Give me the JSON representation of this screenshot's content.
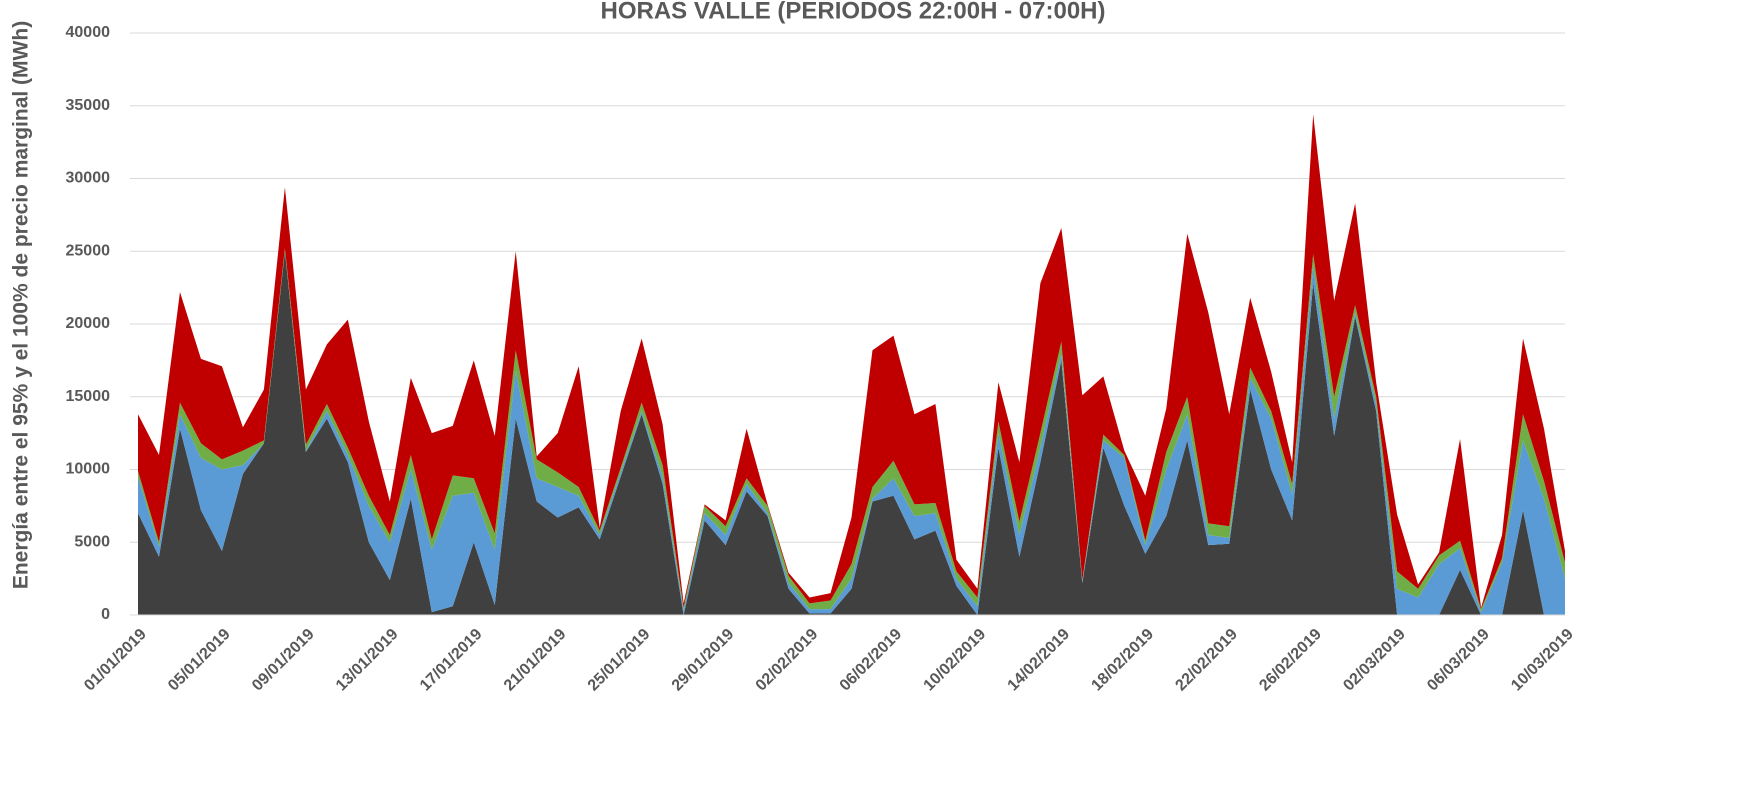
{
  "chart_data": {
    "type": "stacked-area",
    "title": "HORAS VALLE (PERIODOS 22:00H - 07:00H)",
    "y_label": "Energía entre el 95% y el 100% de precio marginal (MWh)",
    "categories": [
      "01/01/2019",
      null,
      null,
      null,
      "05/01/2019",
      null,
      null,
      null,
      "09/01/2019",
      null,
      null,
      null,
      "13/01/2019",
      null,
      null,
      null,
      "17/01/2019",
      null,
      null,
      null,
      "21/01/2019",
      null,
      null,
      null,
      "25/01/2019",
      null,
      null,
      null,
      "29/01/2019",
      null,
      null,
      null,
      "02/02/2019",
      null,
      null,
      null,
      "06/02/2019",
      null,
      null,
      null,
      "10/02/2019",
      null,
      null,
      null,
      "14/02/2019",
      null,
      null,
      null,
      "18/02/2019",
      null,
      null,
      null,
      "22/02/2019",
      null,
      null,
      null,
      "26/02/2019",
      null,
      null,
      null,
      "02/03/2019",
      null,
      null,
      null,
      "06/03/2019",
      null,
      null,
      null,
      "10/03/2019"
    ],
    "series": [
      {
        "color": "#404040",
        "values": [
          7000,
          4000,
          12800,
          7200,
          4400,
          9700,
          11800,
          25000,
          11200,
          13500,
          10500,
          5000,
          2400,
          8000,
          200,
          600,
          5000,
          700,
          13500,
          7800,
          6700,
          7400,
          5200,
          9500,
          13800,
          9000,
          0,
          6500,
          4800,
          8500,
          6800,
          1800,
          100,
          100,
          1800,
          7800,
          8200,
          5200,
          5800,
          2000,
          0,
          11500,
          4000,
          10500,
          17500,
          2200,
          11500,
          7500,
          4200,
          6800,
          12000,
          4800,
          4900,
          15500,
          10000,
          6500,
          22800,
          12300,
          20500,
          14000,
          0,
          0,
          0,
          3100,
          0,
          0,
          7200,
          0,
          0
        ]
      },
      {
        "color": "#5b9bd5",
        "values": [
          2500,
          700,
          1000,
          3600,
          5600,
          600,
          0,
          0,
          100,
          500,
          500,
          2500,
          2600,
          2000,
          4300,
          7600,
          3400,
          3800,
          3300,
          1600,
          2100,
          800,
          300,
          300,
          200,
          500,
          300,
          500,
          700,
          500,
          200,
          400,
          300,
          300,
          700,
          200,
          1200,
          1600,
          1200,
          500,
          600,
          1000,
          1500,
          1000,
          500,
          100,
          500,
          3300,
          600,
          3200,
          1800,
          700,
          400,
          800,
          3500,
          1800,
          1200,
          1200,
          300,
          500,
          1800,
          1200,
          3500,
          1500,
          200,
          3600,
          4800,
          8000,
          2500
        ]
      },
      {
        "color": "#70ad47",
        "values": [
          400,
          300,
          800,
          1000,
          700,
          1000,
          200,
          200,
          400,
          500,
          500,
          700,
          500,
          1000,
          700,
          1400,
          1000,
          1100,
          1400,
          1300,
          1000,
          600,
          300,
          300,
          600,
          800,
          200,
          500,
          600,
          400,
          500,
          500,
          400,
          600,
          1000,
          800,
          1200,
          800,
          700,
          500,
          600,
          800,
          900,
          1000,
          800,
          100,
          400,
          200,
          300,
          1200,
          1200,
          800,
          800,
          700,
          500,
          700,
          800,
          1500,
          500,
          500,
          1200,
          600,
          600,
          500,
          200,
          300,
          1800,
          1200,
          1100
        ]
      },
      {
        "color": "#c00000",
        "values": [
          3900,
          6000,
          7600,
          5800,
          6400,
          1600,
          3500,
          4200,
          3800,
          4100,
          8800,
          5100,
          2300,
          5300,
          7300,
          3400,
          8100,
          6700,
          6800,
          200,
          2700,
          8300,
          200,
          3900,
          4400,
          2800,
          300,
          100,
          400,
          3400,
          100,
          200,
          400,
          500,
          3200,
          9400,
          8600,
          6200,
          6800,
          800,
          600,
          2700,
          4100,
          10300,
          7800,
          12700,
          4000,
          300,
          3100,
          3000,
          11200,
          14500,
          7700,
          4800,
          2700,
          1500,
          9600,
          6600,
          7000,
          1000,
          3900,
          300,
          200,
          7000,
          100,
          1600,
          5200,
          3600,
          800
        ]
      }
    ],
    "ylim": [
      0,
      40000
    ],
    "yticks": [
      0,
      5000,
      10000,
      15000,
      20000,
      25000,
      30000,
      35000,
      40000
    ],
    "grid": true
  }
}
